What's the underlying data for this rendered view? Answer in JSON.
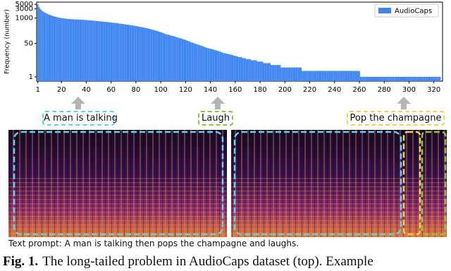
{
  "chart_data": {
    "type": "bar",
    "ylabel": "Frequency (number)",
    "color": "#3f86f0",
    "log_y": true,
    "legend": "upper right",
    "series": [
      {
        "name": "AudioCaps",
        "color": "#3f86f0",
        "x": [
          1,
          2,
          3,
          4,
          5,
          6,
          7,
          8,
          9,
          10,
          11,
          12,
          13,
          14,
          15,
          16,
          17,
          18,
          19,
          20,
          21,
          22,
          23,
          24,
          25,
          26,
          27,
          28,
          29,
          30,
          31,
          32,
          33,
          34,
          35,
          36,
          37,
          38,
          39,
          40,
          41,
          42,
          43,
          44,
          45,
          46,
          47,
          48,
          49,
          50,
          51,
          52,
          53,
          54,
          55,
          56,
          57,
          58,
          59,
          60,
          61,
          62,
          63,
          64,
          65,
          66,
          67,
          68,
          69,
          70,
          71,
          72,
          73,
          74,
          75,
          76,
          77,
          78,
          79,
          80,
          81,
          82,
          83,
          84,
          85,
          86,
          87,
          88,
          89,
          90,
          91,
          92,
          93,
          94,
          95,
          96,
          97,
          98,
          99,
          100,
          101,
          102,
          103,
          104,
          105,
          106,
          107,
          108,
          109,
          110,
          111,
          112,
          113,
          114,
          115,
          116,
          117,
          118,
          119,
          120,
          121,
          122,
          123,
          124,
          125,
          126,
          127,
          128,
          129,
          130,
          131,
          132,
          133,
          134,
          135,
          136,
          137,
          138,
          139,
          140,
          141,
          142,
          143,
          144,
          145,
          146,
          147,
          148,
          149,
          150,
          151,
          152,
          153,
          154,
          155,
          156,
          157,
          158,
          159,
          160,
          161,
          162,
          163,
          164,
          165,
          166,
          167,
          168,
          169,
          170,
          171,
          172,
          173,
          174,
          175,
          176,
          177,
          178,
          179,
          180,
          181,
          182,
          183,
          184,
          185,
          186,
          187,
          188,
          189,
          190,
          191,
          192,
          193,
          194,
          195,
          196,
          197,
          198,
          199,
          200,
          201,
          202,
          203,
          204,
          205,
          206,
          207,
          208,
          209,
          210,
          211,
          212,
          213,
          214,
          215,
          216,
          217,
          218,
          219,
          220,
          221,
          222,
          223,
          224,
          225,
          226,
          227,
          228,
          229,
          230,
          231,
          232,
          233,
          234,
          235,
          236,
          237,
          238,
          239,
          240,
          241,
          242,
          243,
          244,
          245,
          246,
          247,
          248,
          249,
          250,
          251,
          252,
          253,
          254,
          255,
          256,
          257,
          258,
          259,
          260,
          261,
          262,
          263,
          264,
          265,
          266,
          267,
          268,
          269,
          270,
          271,
          272,
          273,
          274,
          275,
          276,
          277,
          278,
          279,
          280,
          281,
          282,
          283,
          284,
          285,
          286,
          287,
          288,
          289,
          290,
          291,
          292,
          293,
          294,
          295,
          296,
          297,
          298,
          299,
          300,
          301,
          302,
          303,
          304,
          305,
          306,
          307,
          308,
          309,
          310,
          311,
          312,
          313,
          314,
          315,
          316,
          317,
          318,
          319,
          320,
          321,
          322,
          323,
          324,
          325
        ],
        "values": [
          5000,
          3600,
          2900,
          2500,
          2200,
          2000,
          1850,
          1700,
          1600,
          1500,
          1420,
          1350,
          1290,
          1230,
          1180,
          1130,
          1090,
          1050,
          1020,
          1000,
          980,
          960,
          940,
          920,
          900,
          890,
          880,
          870,
          860,
          850,
          845,
          840,
          835,
          830,
          825,
          820,
          815,
          810,
          800,
          790,
          780,
          770,
          760,
          750,
          740,
          730,
          720,
          710,
          700,
          690,
          680,
          670,
          660,
          650,
          640,
          630,
          620,
          610,
          600,
          590,
          580,
          570,
          560,
          550,
          540,
          530,
          520,
          510,
          500,
          490,
          480,
          470,
          460,
          450,
          440,
          430,
          420,
          410,
          400,
          390,
          380,
          370,
          360,
          350,
          340,
          330,
          320,
          310,
          300,
          290,
          280,
          270,
          260,
          250,
          240,
          230,
          220,
          210,
          200,
          190,
          180,
          170,
          160,
          150,
          145,
          140,
          135,
          130,
          125,
          120,
          115,
          110,
          105,
          100,
          96,
          92,
          88,
          84,
          80,
          76,
          72,
          68,
          64,
          60,
          57,
          54,
          51,
          48,
          46,
          44,
          42,
          40,
          38,
          36,
          34,
          32,
          30,
          29,
          28,
          27,
          26,
          25,
          24,
          23,
          22,
          21,
          20,
          19,
          18,
          17,
          16,
          16,
          15,
          15,
          14,
          14,
          13,
          13,
          12,
          12,
          11,
          11,
          10,
          10,
          10,
          9,
          9,
          9,
          8,
          8,
          8,
          8,
          7,
          7,
          7,
          7,
          7,
          6,
          6,
          6,
          6,
          6,
          5,
          5,
          5,
          5,
          5,
          5,
          4,
          4,
          4,
          4,
          4,
          4,
          4,
          4,
          3,
          3,
          3,
          3,
          3,
          3,
          3,
          3,
          3,
          3,
          3,
          3,
          3,
          3,
          3,
          3,
          3,
          2,
          2,
          2,
          2,
          2,
          2,
          2,
          2,
          2,
          2,
          2,
          2,
          2,
          2,
          2,
          2,
          2,
          2,
          2,
          2,
          2,
          2,
          2,
          2,
          2,
          2,
          2,
          2,
          2,
          2,
          2,
          2,
          2,
          2,
          2,
          2,
          2,
          2,
          2,
          2,
          2,
          2,
          2,
          2,
          2,
          2,
          2,
          1,
          1,
          1,
          1,
          1,
          1,
          1,
          1,
          1,
          1,
          1,
          1,
          1,
          1,
          1,
          1,
          1,
          1,
          1,
          1,
          1,
          1,
          1,
          1,
          1,
          1,
          1,
          1,
          1,
          1,
          1,
          1,
          1,
          1,
          1,
          1,
          1,
          1,
          1,
          1,
          1,
          1,
          1,
          1,
          1,
          1,
          1,
          1,
          1,
          1,
          1,
          1,
          1,
          1,
          1,
          1,
          1,
          1,
          1,
          1,
          1,
          1,
          1,
          1,
          1
        ]
      }
    ],
    "xlim": [
      0,
      327
    ],
    "xticks": [
      1,
      20,
      40,
      60,
      80,
      100,
      120,
      140,
      160,
      180,
      200,
      220,
      240,
      260,
      280,
      300,
      320
    ],
    "ylim": [
      0.6,
      6500
    ],
    "yticks": [
      1,
      50,
      1000,
      3000,
      5000
    ]
  },
  "annotations": [
    "A man is talking",
    "Laugh",
    "Pop the champagne"
  ],
  "text_prompt": "Text prompt: A man is talking then pops the champagne and laughs.",
  "caption": {
    "label": "Fig. 1.",
    "text": "The long-tailed problem in AudioCaps dataset (top). Example"
  }
}
